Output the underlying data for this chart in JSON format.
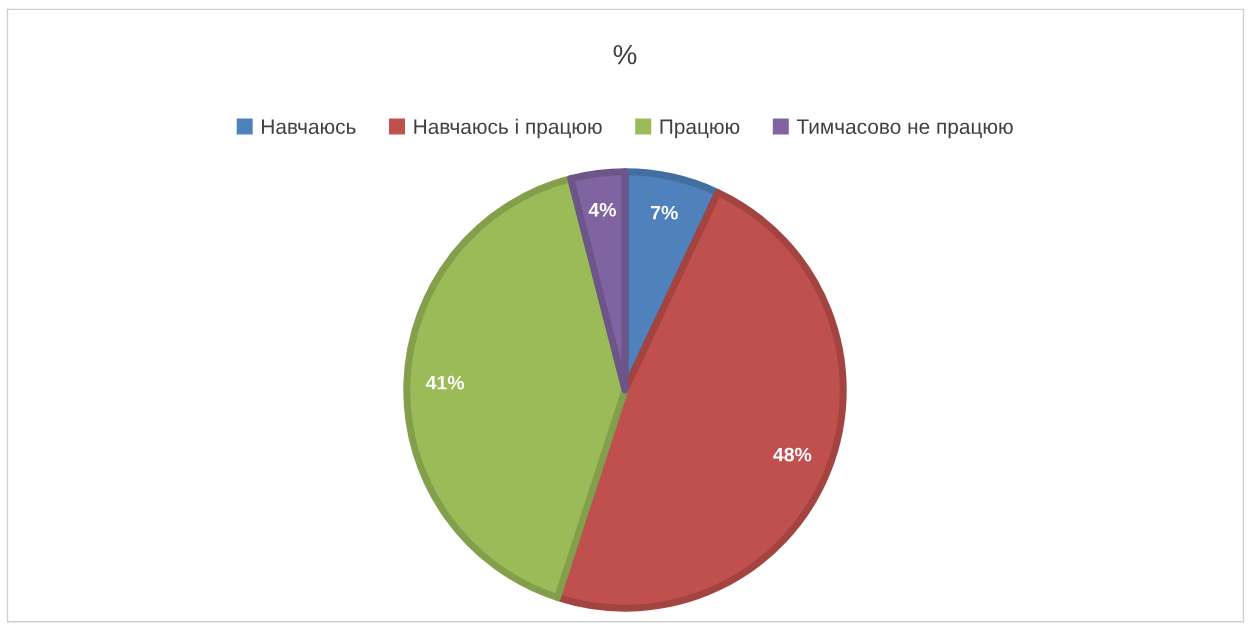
{
  "chart_data": {
    "type": "pie",
    "title": "%",
    "categories": [
      "Навчаюсь",
      "Навчаюсь і працюю",
      "Працюю",
      "Тимчасово не працюю"
    ],
    "values": [
      7,
      48,
      41,
      4
    ],
    "colors": [
      "#4f81bd",
      "#c0504d",
      "#9bbb59",
      "#8064a2"
    ],
    "value_labels": [
      "7%",
      "48%",
      "41%",
      "4%"
    ],
    "legend": "top"
  }
}
